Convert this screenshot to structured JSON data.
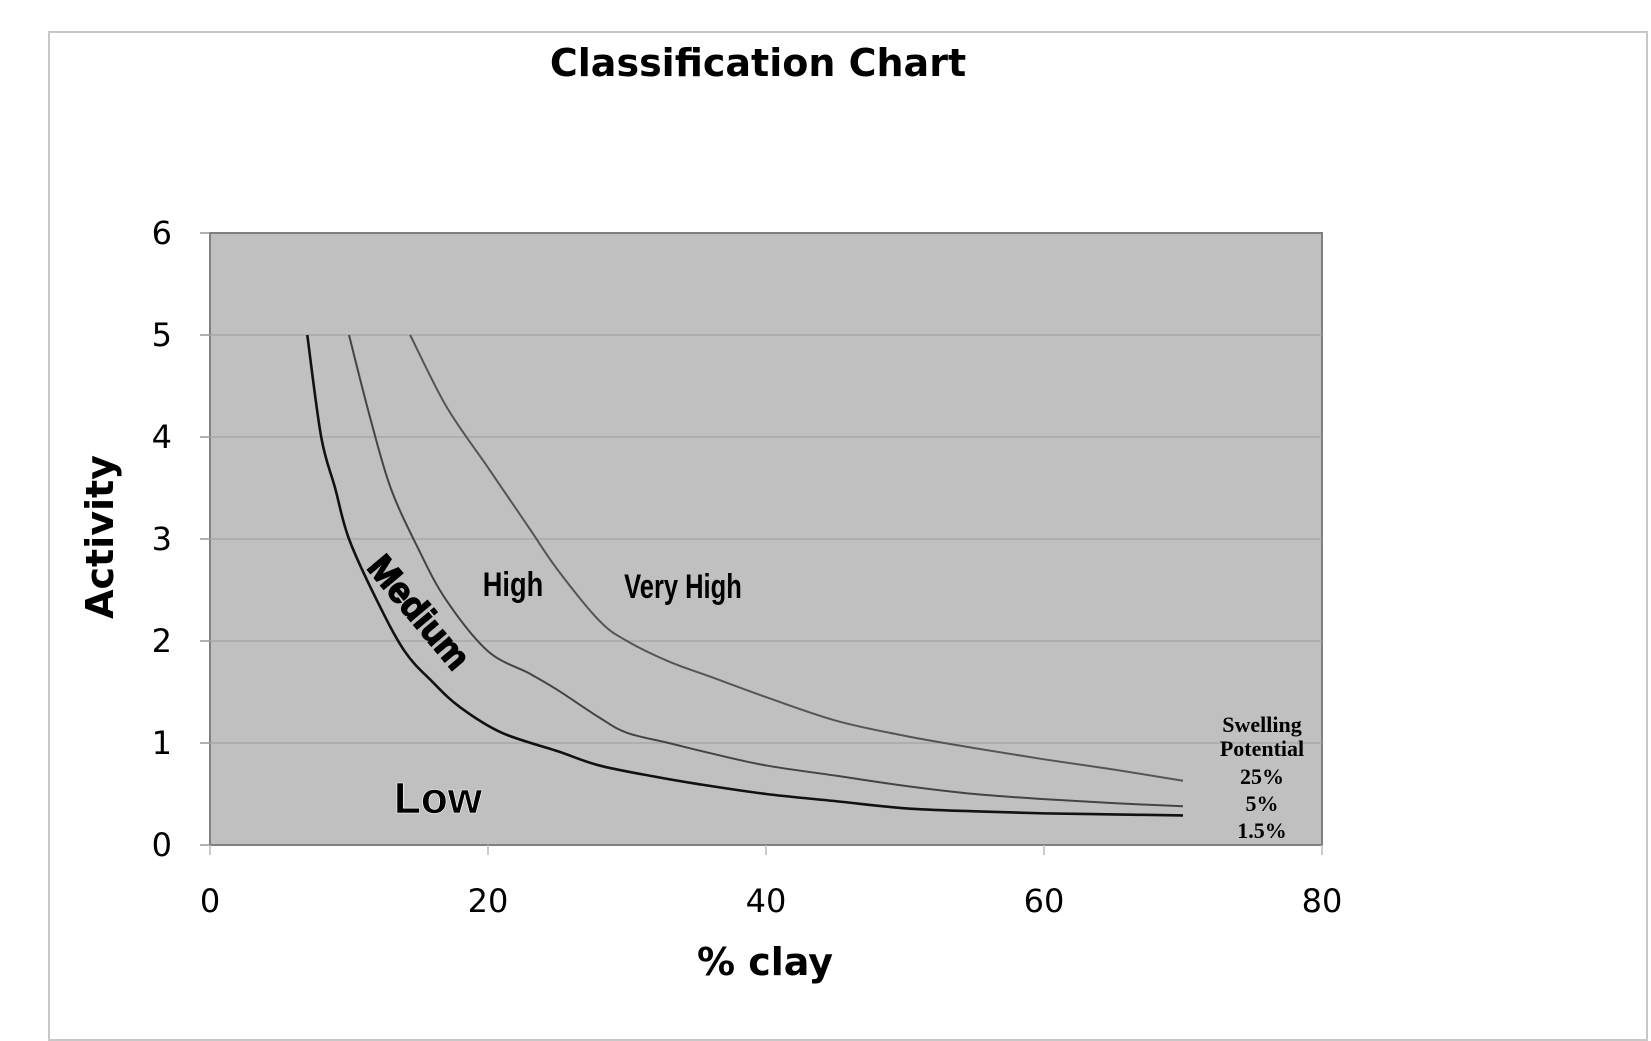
{
  "chart_data": {
    "type": "line",
    "title": "Classification Chart",
    "xlabel": "% clay",
    "ylabel": "Activity",
    "xlim": [
      0,
      80
    ],
    "ylim": [
      0,
      6
    ],
    "x_ticks": [
      "0",
      "20",
      "40",
      "60",
      "80"
    ],
    "y_ticks": [
      "0",
      "1",
      "2",
      "3",
      "4",
      "5",
      "6"
    ],
    "grid": "horizontal",
    "plot_background": "#c0c0c0",
    "legend": {
      "title_line1": "Swelling",
      "title_line2": "Potential",
      "position": "right, at curve ends",
      "entries": [
        "25%",
        "5%",
        "1.5%"
      ]
    },
    "zones": [
      "Low",
      "Medium",
      "High",
      "Very High"
    ],
    "series": [
      {
        "name": "25%",
        "color": "#555555",
        "x": [
          14.4,
          17,
          20,
          23,
          25,
          28,
          30,
          33,
          36,
          40,
          45,
          50,
          55,
          60,
          65,
          70
        ],
        "y": [
          5.0,
          4.3,
          3.7,
          3.1,
          2.7,
          2.2,
          2.0,
          1.8,
          1.65,
          1.45,
          1.22,
          1.07,
          0.95,
          0.84,
          0.74,
          0.63
        ]
      },
      {
        "name": "5%",
        "color": "#444444",
        "x": [
          10,
          11.5,
          13,
          15,
          17,
          20,
          23,
          25,
          28,
          30,
          33,
          36,
          40,
          45,
          50,
          55,
          60,
          65,
          70
        ],
        "y": [
          5.0,
          4.2,
          3.5,
          2.9,
          2.4,
          1.9,
          1.68,
          1.52,
          1.25,
          1.1,
          1.0,
          0.9,
          0.78,
          0.68,
          0.58,
          0.5,
          0.45,
          0.41,
          0.38
        ]
      },
      {
        "name": "1.5%",
        "color": "#111111",
        "x": [
          7,
          8,
          9,
          10,
          12,
          14,
          16,
          18,
          21,
          25,
          28,
          32,
          35,
          40,
          45,
          50,
          55,
          60,
          65,
          70
        ],
        "y": [
          5.0,
          4.0,
          3.5,
          3.0,
          2.4,
          1.9,
          1.6,
          1.35,
          1.1,
          0.92,
          0.78,
          0.67,
          0.6,
          0.5,
          0.43,
          0.36,
          0.33,
          0.31,
          0.3,
          0.29
        ]
      }
    ]
  }
}
